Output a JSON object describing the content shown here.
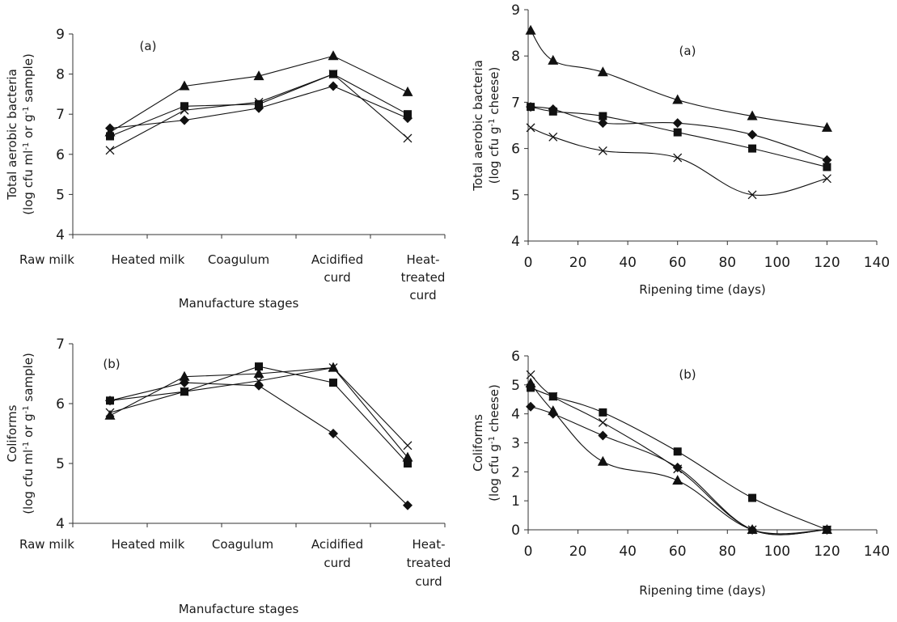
{
  "chart_data": [
    {
      "type": "line",
      "panel_label": "(a)",
      "xlabel": "Manufacture stages",
      "ylabel_lines": [
        "Total aerobic bacteria",
        "(log cfu ml",
        "-1",
        " or g",
        "-1",
        " sample)"
      ],
      "categories": [
        [
          "Raw milk"
        ],
        [
          "Heated milk"
        ],
        [
          "Coagulum"
        ],
        [
          "Acidified",
          "curd"
        ],
        [
          "Heat-",
          "treated",
          "curd"
        ]
      ],
      "ylim": [
        4,
        9
      ],
      "yticks": [
        "4",
        "5",
        "6",
        "7",
        "8",
        "9"
      ],
      "series": [
        {
          "marker": "diamond",
          "values": [
            6.65,
            6.85,
            7.15,
            7.7,
            6.9
          ]
        },
        {
          "marker": "square",
          "values": [
            6.45,
            7.2,
            7.25,
            8.0,
            7.0
          ]
        },
        {
          "marker": "triangle",
          "values": [
            6.55,
            7.7,
            7.95,
            8.45,
            7.55
          ]
        },
        {
          "marker": "cross",
          "values": [
            6.1,
            7.1,
            7.3,
            8.0,
            6.4
          ]
        }
      ]
    },
    {
      "type": "line",
      "panel_label": "(a)",
      "xlabel": "Ripening time (days)",
      "ylabel_lines": [
        "Total aerobic bacteria",
        "(log cfu g",
        "-1",
        " cheese)"
      ],
      "xlim": [
        0,
        140
      ],
      "xticks": [
        "0",
        "20",
        "40",
        "60",
        "80",
        "100",
        "120",
        "140"
      ],
      "ylim": [
        4,
        9
      ],
      "yticks": [
        "4",
        "5",
        "6",
        "7",
        "8",
        "9"
      ],
      "x": [
        1,
        10,
        30,
        60,
        90,
        120
      ],
      "series": [
        {
          "marker": "diamond",
          "values": [
            6.9,
            6.85,
            6.55,
            6.55,
            6.3,
            5.75
          ]
        },
        {
          "marker": "square",
          "values": [
            6.9,
            6.8,
            6.7,
            6.35,
            6.0,
            5.6
          ]
        },
        {
          "marker": "triangle",
          "values": [
            8.55,
            7.9,
            7.65,
            7.05,
            6.7,
            6.45
          ]
        },
        {
          "marker": "cross",
          "values": [
            6.45,
            6.25,
            5.95,
            5.8,
            5.0,
            5.35
          ]
        }
      ]
    },
    {
      "type": "line",
      "panel_label": "(b)",
      "xlabel": "Manufacture stages",
      "ylabel_lines": [
        "Coliforms",
        "(log cfu ml",
        "-1",
        " or g",
        "-1",
        " sample)"
      ],
      "categories": [
        [
          "Raw milk"
        ],
        [
          "Heated milk"
        ],
        [
          "Coagulum"
        ],
        [
          "Acidified",
          "curd"
        ],
        [
          "Heat-",
          "treated",
          "curd"
        ]
      ],
      "ylim": [
        4,
        7
      ],
      "yticks": [
        "4",
        "5",
        "6",
        "7"
      ],
      "series": [
        {
          "marker": "diamond",
          "values": [
            6.05,
            6.35,
            6.3,
            5.5,
            4.3
          ]
        },
        {
          "marker": "square",
          "values": [
            6.05,
            6.2,
            6.62,
            6.35,
            5.0
          ]
        },
        {
          "marker": "triangle",
          "values": [
            5.8,
            6.45,
            6.5,
            6.6,
            5.1
          ]
        },
        {
          "marker": "cross",
          "values": [
            5.85,
            6.2,
            6.38,
            6.6,
            5.3
          ]
        }
      ]
    },
    {
      "type": "line",
      "panel_label": "(b)",
      "xlabel": "Ripening time (days)",
      "ylabel_lines": [
        "Coliforms",
        "(log cfu g",
        "-1",
        " cheese)"
      ],
      "xlim": [
        0,
        140
      ],
      "xticks": [
        "0",
        "20",
        "40",
        "60",
        "80",
        "100",
        "120",
        "140"
      ],
      "ylim": [
        0,
        6
      ],
      "yticks": [
        "0",
        "1",
        "2",
        "3",
        "4",
        "5",
        "6"
      ],
      "x": [
        1,
        10,
        30,
        60,
        90,
        120
      ],
      "series": [
        {
          "marker": "diamond",
          "values": [
            4.25,
            4.0,
            3.25,
            2.15,
            0.0,
            0.0
          ]
        },
        {
          "marker": "square",
          "values": [
            4.9,
            4.6,
            4.05,
            2.7,
            1.1,
            0.0
          ]
        },
        {
          "marker": "triangle",
          "values": [
            5.05,
            4.1,
            2.35,
            1.7,
            0.0,
            0.0
          ]
        },
        {
          "marker": "cross",
          "values": [
            5.35,
            4.6,
            3.7,
            2.1,
            0.0,
            0.0
          ]
        }
      ]
    }
  ]
}
